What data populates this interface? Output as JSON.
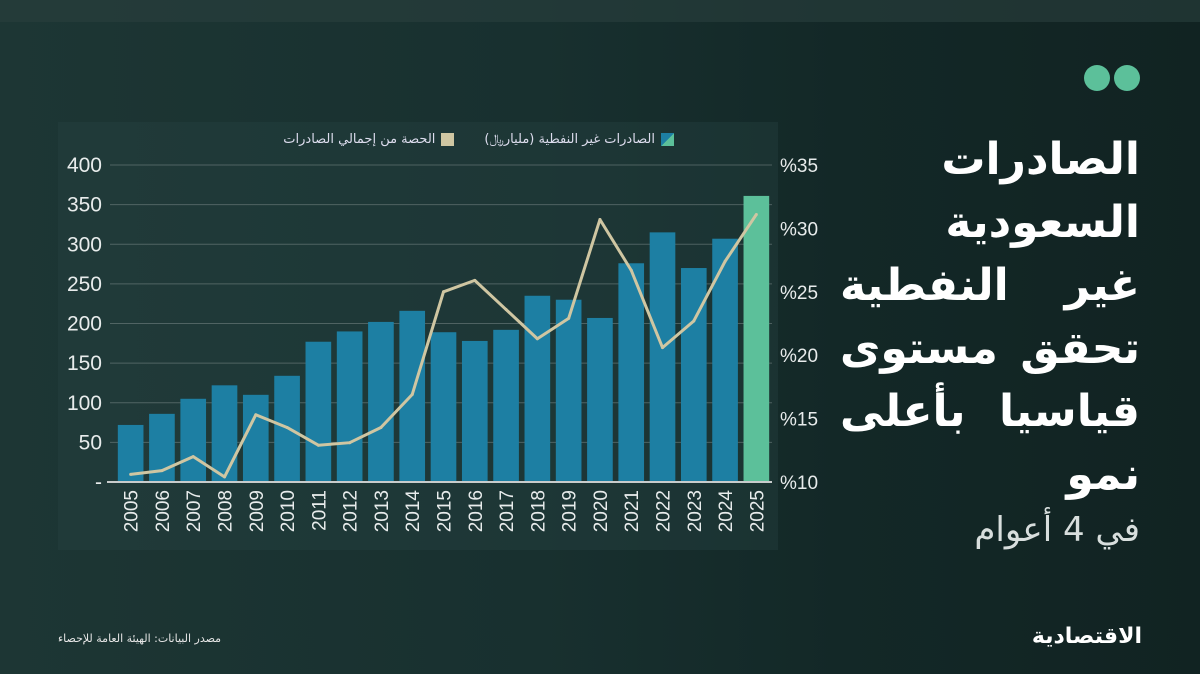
{
  "title_lines": [
    "الصادرات",
    "السعودية",
    "غير النفطية",
    "تحقق مستوى",
    "قياسيا بأعلى",
    "نمو"
  ],
  "subtitle": "في 4 أعوام",
  "source": "مصدر البيانات: الهيئة العامة للإحصاء",
  "logo": "الاقتصادية",
  "colors": {
    "bar": "#1d7fa3",
    "bar_highlight": "#5cc09a",
    "line": "#cfc6a2",
    "accent": "#5cc09a"
  },
  "chart_data": {
    "type": "bar",
    "categories": [
      "2005",
      "2006",
      "2007",
      "2008",
      "2009",
      "2010",
      "2011",
      "2012",
      "2013",
      "2014",
      "2015",
      "2016",
      "2017",
      "2018",
      "2019",
      "2020",
      "2021",
      "2022",
      "2023",
      "2024",
      "2025"
    ],
    "series": [
      {
        "name": "الصادرات غير النفطية (مليار﷼)",
        "type": "bar",
        "axis": "left",
        "values": [
          72,
          86,
          105,
          122,
          110,
          134,
          177,
          190,
          202,
          216,
          189,
          178,
          192,
          235,
          230,
          207,
          276,
          315,
          270,
          307,
          361
        ]
      },
      {
        "name": "الحصة من إجمالي الصادرات",
        "type": "line",
        "axis": "right",
        "values": [
          10.6,
          10.9,
          12.0,
          10.4,
          15.3,
          14.3,
          12.9,
          13.1,
          14.3,
          16.9,
          25.0,
          25.9,
          23.6,
          21.3,
          22.9,
          30.7,
          26.7,
          20.6,
          22.7,
          27.4,
          31.1
        ]
      }
    ],
    "highlight_category": "2025",
    "left_axis": {
      "ylim": [
        0,
        400
      ],
      "ticks": [
        "-",
        "50",
        "100",
        "150",
        "200",
        "250",
        "300",
        "350",
        "400"
      ]
    },
    "right_axis": {
      "ylim": [
        10,
        35
      ],
      "ticks": [
        "%10",
        "%15",
        "%20",
        "%25",
        "%30",
        "%35"
      ]
    },
    "grid": true,
    "legend_placement": "top"
  }
}
